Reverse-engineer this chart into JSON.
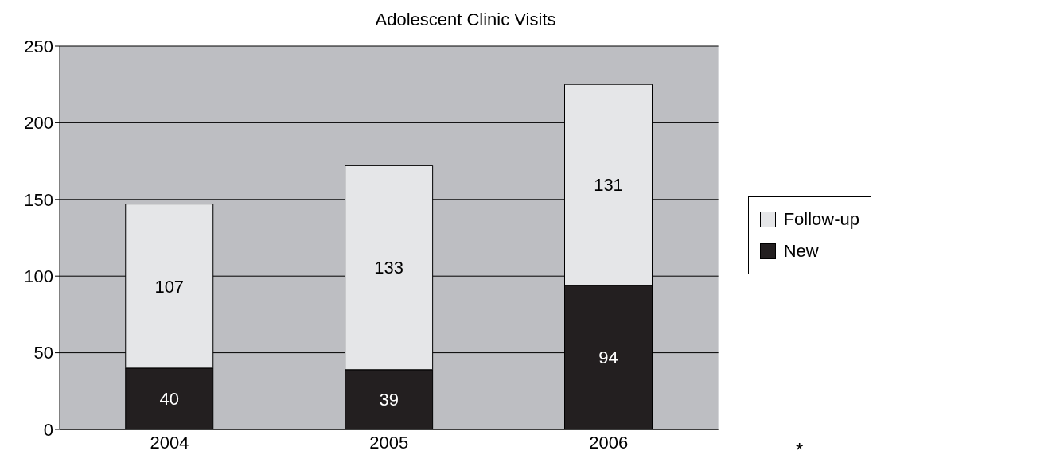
{
  "chart_data": {
    "type": "bar",
    "title": "Adolescent Clinic Visits",
    "categories": [
      "2004",
      "2005",
      "2006"
    ],
    "stacked": true,
    "series": [
      {
        "name": "New",
        "color": "#231f20",
        "values": [
          40,
          39,
          94
        ]
      },
      {
        "name": "Follow-up",
        "color": "#e5e6e8",
        "values": [
          107,
          133,
          131
        ]
      }
    ],
    "ylim": [
      0,
      250
    ],
    "yticks": [
      0,
      50,
      100,
      150,
      200,
      250
    ],
    "grid": "y",
    "legend": "right",
    "data_labels": true,
    "annotations": [
      "*"
    ]
  }
}
